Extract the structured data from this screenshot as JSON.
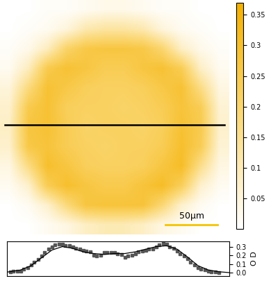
{
  "chart_data": [
    {
      "type": "heatmap",
      "tick_labels": false,
      "xlim": [
        0,
        220
      ],
      "ylim": [
        223,
        0
      ],
      "cells": [
        [
          0,
          0,
          0.01,
          0.01,
          0.02,
          0.03,
          0.03,
          0.02,
          0.01,
          0.01,
          0,
          0
        ],
        [
          0,
          0.01,
          0.02,
          0.05,
          0.11,
          0.13,
          0.13,
          0.11,
          0.05,
          0.02,
          0.01,
          0
        ],
        [
          0.01,
          0.03,
          0.09,
          0.21,
          0.26,
          0.27,
          0.27,
          0.26,
          0.2,
          0.08,
          0.03,
          0.01
        ],
        [
          0.02,
          0.09,
          0.25,
          0.29,
          0.27,
          0.24,
          0.24,
          0.27,
          0.29,
          0.24,
          0.08,
          0.02
        ],
        [
          0.05,
          0.18,
          0.29,
          0.26,
          0.23,
          0.22,
          0.22,
          0.23,
          0.26,
          0.29,
          0.17,
          0.04
        ],
        [
          0.07,
          0.25,
          0.29,
          0.23,
          0.22,
          0.22,
          0.21,
          0.22,
          0.24,
          0.28,
          0.24,
          0.06
        ],
        [
          0.08,
          0.27,
          0.29,
          0.24,
          0.21,
          0.22,
          0.22,
          0.21,
          0.23,
          0.29,
          0.25,
          0.07
        ],
        [
          0.07,
          0.26,
          0.28,
          0.24,
          0.22,
          0.21,
          0.22,
          0.22,
          0.24,
          0.3,
          0.24,
          0.06
        ],
        [
          0.04,
          0.17,
          0.3,
          0.27,
          0.23,
          0.22,
          0.22,
          0.23,
          0.27,
          0.31,
          0.16,
          0.04
        ],
        [
          0.02,
          0.07,
          0.24,
          0.3,
          0.27,
          0.25,
          0.25,
          0.28,
          0.31,
          0.23,
          0.07,
          0.02
        ],
        [
          0.0,
          0.02,
          0.07,
          0.18,
          0.27,
          0.28,
          0.28,
          0.28,
          0.19,
          0.07,
          0.02,
          0.0
        ],
        [
          0,
          0,
          0.02,
          0.04,
          0.08,
          0.1,
          0.1,
          0.08,
          0.04,
          0.02,
          0,
          0
        ]
      ],
      "colorbar": {
        "range": [
          0,
          0.37
        ],
        "ticks": [
          0.05,
          0.1,
          0.15,
          0.2,
          0.25,
          0.3,
          0.35
        ]
      },
      "scale_bar": {
        "length": 50,
        "label": "50µm"
      },
      "cut_y": 119
    },
    {
      "type": "scatter",
      "tick_labels": "y",
      "ylabel": "O D",
      "xlim": [
        7,
        220
      ],
      "ylim": [
        -0.04,
        0.36
      ],
      "yticks": [
        0.0,
        0.1,
        0.2,
        0.3
      ],
      "series": [
        {
          "type": "scatter",
          "marker": "square",
          "color": "#555555",
          "x": [
            10,
            13,
            17,
            20,
            23,
            27,
            30,
            33,
            37,
            40,
            43,
            47,
            50,
            53,
            57,
            60,
            63,
            67,
            70,
            73,
            77,
            80,
            83,
            87,
            90,
            93,
            97,
            100,
            103,
            107,
            110,
            113,
            117,
            120,
            123,
            127,
            130,
            133,
            137,
            140,
            143,
            147,
            150,
            153,
            157,
            160,
            163,
            167,
            170,
            173,
            177,
            180,
            183,
            187,
            190,
            193,
            197,
            200,
            203,
            207,
            210
          ],
          "values": [
            0.01,
            0.02,
            0.02,
            0.02,
            0.04,
            0.06,
            0.09,
            0.12,
            0.15,
            0.19,
            0.23,
            0.27,
            0.3,
            0.32,
            0.33,
            0.33,
            0.31,
            0.31,
            0.3,
            0.28,
            0.27,
            0.26,
            0.25,
            0.24,
            0.2,
            0.19,
            0.2,
            0.23,
            0.23,
            0.23,
            0.23,
            0.22,
            0.21,
            0.18,
            0.19,
            0.2,
            0.22,
            0.24,
            0.25,
            0.26,
            0.27,
            0.27,
            0.3,
            0.32,
            0.34,
            0.33,
            0.3,
            0.28,
            0.25,
            0.22,
            0.19,
            0.16,
            0.12,
            0.09,
            0.06,
            0.04,
            0.03,
            0.02,
            0.01,
            0.01,
            0.0
          ]
        },
        {
          "type": "line",
          "line_style": "solid",
          "color": "#000000",
          "x": [
            0,
            10,
            20,
            30,
            40,
            50,
            60,
            70,
            80,
            90,
            100,
            110,
            120,
            130,
            140,
            150,
            160,
            170,
            180,
            190,
            200,
            210,
            220
          ],
          "values": [
            0.0,
            0.01,
            0.03,
            0.08,
            0.17,
            0.26,
            0.3,
            0.28,
            0.24,
            0.22,
            0.21,
            0.22,
            0.22,
            0.24,
            0.27,
            0.3,
            0.31,
            0.27,
            0.18,
            0.08,
            0.03,
            0.01,
            0.0
          ]
        }
      ]
    }
  ]
}
